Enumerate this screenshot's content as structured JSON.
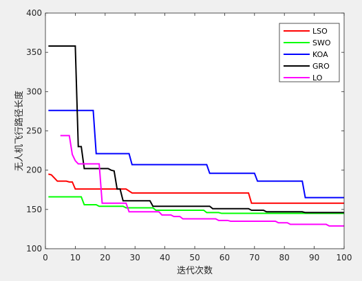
{
  "chart_data": {
    "type": "line",
    "title": "",
    "xlabel": "迭代次数",
    "ylabel": "无人机飞行路径长度",
    "xlim": [
      0,
      100
    ],
    "ylim": [
      100,
      400
    ],
    "xticks": [
      0,
      10,
      20,
      30,
      40,
      50,
      60,
      70,
      80,
      90,
      100
    ],
    "yticks": [
      100,
      150,
      200,
      250,
      300,
      350,
      400
    ],
    "grid": false,
    "legend_position": "top-right",
    "series": [
      {
        "name": "LSO",
        "color": "#ff0000",
        "points": [
          [
            1,
            195
          ],
          [
            2,
            194
          ],
          [
            3,
            190
          ],
          [
            4,
            186
          ],
          [
            7,
            186
          ],
          [
            8,
            185
          ],
          [
            9,
            185
          ],
          [
            10,
            176
          ],
          [
            27,
            176
          ],
          [
            29,
            171
          ],
          [
            68,
            171
          ],
          [
            69,
            158
          ],
          [
            100,
            158
          ]
        ]
      },
      {
        "name": "SWO",
        "color": "#00ff00",
        "points": [
          [
            1,
            166
          ],
          [
            12,
            166
          ],
          [
            13,
            156
          ],
          [
            17,
            156
          ],
          [
            18,
            154
          ],
          [
            26,
            154
          ],
          [
            27,
            152
          ],
          [
            36,
            152
          ],
          [
            37,
            149
          ],
          [
            53,
            149
          ],
          [
            54,
            146
          ],
          [
            58,
            146
          ],
          [
            59,
            145
          ],
          [
            100,
            145
          ]
        ]
      },
      {
        "name": "KOA",
        "color": "#0000ff",
        "points": [
          [
            1,
            276
          ],
          [
            16,
            276
          ],
          [
            17,
            221
          ],
          [
            28,
            221
          ],
          [
            29,
            207
          ],
          [
            54,
            207
          ],
          [
            55,
            196
          ],
          [
            70,
            196
          ],
          [
            71,
            186
          ],
          [
            86,
            186
          ],
          [
            87,
            165
          ],
          [
            100,
            165
          ]
        ]
      },
      {
        "name": "GRO",
        "color": "#000000",
        "points": [
          [
            1,
            358
          ],
          [
            10,
            358
          ],
          [
            11,
            230
          ],
          [
            12,
            230
          ],
          [
            13,
            202
          ],
          [
            21,
            202
          ],
          [
            22,
            200
          ],
          [
            23,
            199
          ],
          [
            24,
            176
          ],
          [
            25,
            176
          ],
          [
            26,
            161
          ],
          [
            35,
            161
          ],
          [
            36,
            154
          ],
          [
            55,
            154
          ],
          [
            56,
            151
          ],
          [
            68,
            151
          ],
          [
            69,
            149
          ],
          [
            73,
            149
          ],
          [
            74,
            147
          ],
          [
            86,
            147
          ],
          [
            87,
            146
          ],
          [
            100,
            146
          ]
        ]
      },
      {
        "name": "LO",
        "color": "#ff00ff",
        "points": [
          [
            5,
            244
          ],
          [
            8,
            244
          ],
          [
            9,
            220
          ],
          [
            10,
            212
          ],
          [
            11,
            208
          ],
          [
            18,
            208
          ],
          [
            19,
            158
          ],
          [
            27,
            158
          ],
          [
            28,
            147
          ],
          [
            38,
            147
          ],
          [
            39,
            143
          ],
          [
            42,
            143
          ],
          [
            43,
            141
          ],
          [
            45,
            141
          ],
          [
            46,
            138
          ],
          [
            57,
            138
          ],
          [
            58,
            136
          ],
          [
            61,
            136
          ],
          [
            62,
            135
          ],
          [
            77,
            135
          ],
          [
            78,
            133
          ],
          [
            81,
            133
          ],
          [
            82,
            131
          ],
          [
            94,
            131
          ],
          [
            95,
            129
          ],
          [
            100,
            129
          ]
        ]
      }
    ]
  }
}
